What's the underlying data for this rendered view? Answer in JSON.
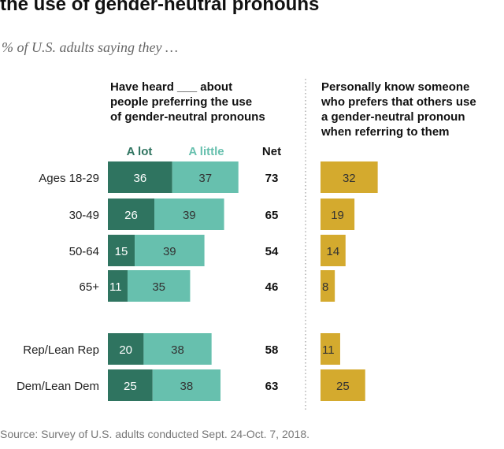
{
  "title": "the use of gender-neutral pronouns",
  "subtitle": "% of U.S. adults saying they …",
  "left_header": "Have heard ___ about\npeople preferring the use\nof gender-neutral pronouns",
  "right_header": "Personally know someone\nwho prefers that others use\na gender-neutral pronoun\nwhen referring to them",
  "source": "Source: Survey of U.S. adults conducted Sept. 24-Oct. 7, 2018.",
  "colors": {
    "a_lot": "#2f7460",
    "a_little": "#67c0ae",
    "know": "#d4aa2e"
  },
  "chart_data": {
    "type": "bar",
    "categories": [
      "Ages 18-29",
      "30-49",
      "50-64",
      "65+",
      "Rep/Lean Rep",
      "Dem/Lean Dem"
    ],
    "series": [
      {
        "name": "A lot",
        "values": [
          36,
          26,
          15,
          11,
          20,
          25
        ]
      },
      {
        "name": "A little",
        "values": [
          37,
          39,
          39,
          35,
          38,
          38
        ]
      }
    ],
    "net_label": "Net",
    "net": [
      "73",
      "65",
      "54",
      "46",
      "58",
      "63"
    ],
    "know": [
      32,
      19,
      14,
      8,
      11,
      25
    ]
  }
}
